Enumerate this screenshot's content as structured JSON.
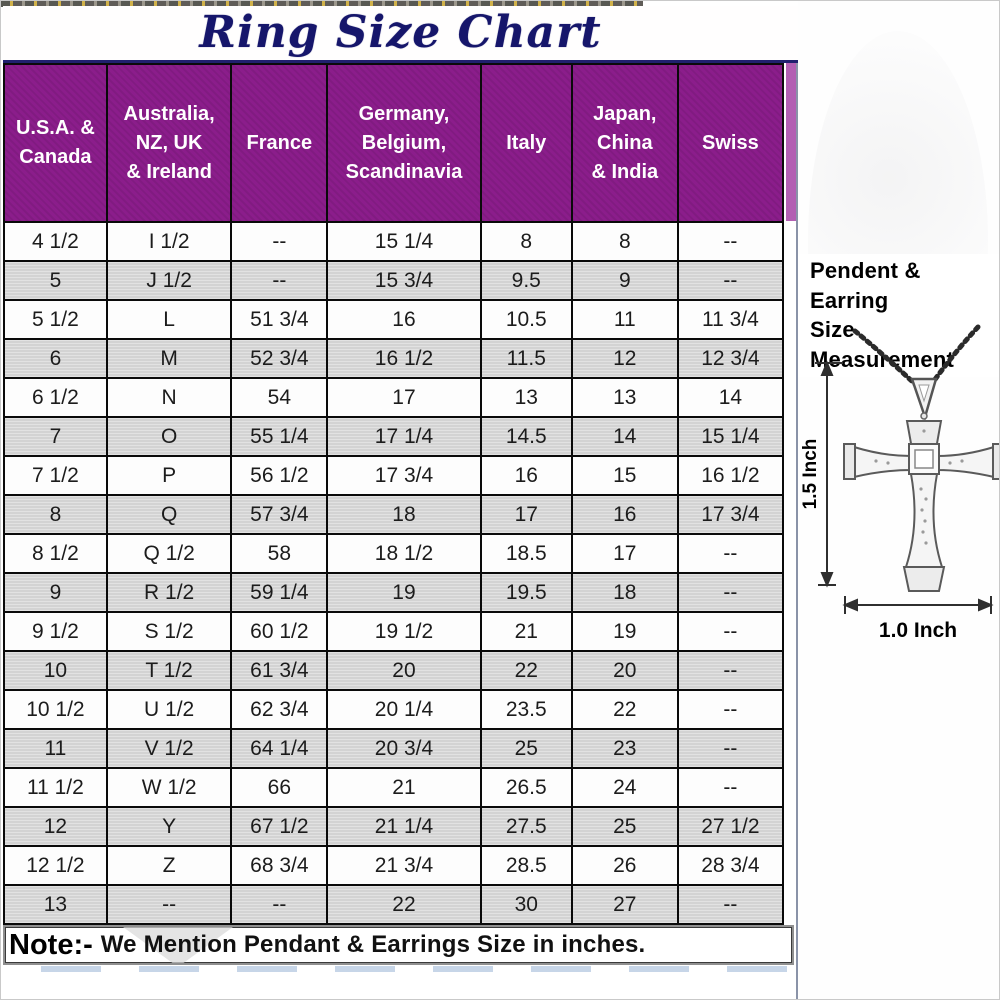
{
  "title": "Ring Size Chart",
  "chart_data": {
    "type": "table",
    "columns": [
      "U.S.A. &\nCanada",
      "Australia,\nNZ, UK\n& Ireland",
      "France",
      "Germany,\nBelgium,\nScandinavia",
      "Italy",
      "Japan,\nChina\n& India",
      "Swiss"
    ],
    "rows": [
      [
        "4 1/2",
        "I 1/2",
        "--",
        "15 1/4",
        "8",
        "8",
        "--"
      ],
      [
        "5",
        "J 1/2",
        "--",
        "15 3/4",
        "9.5",
        "9",
        "--"
      ],
      [
        "5 1/2",
        "L",
        "51 3/4",
        "16",
        "10.5",
        "11",
        "11 3/4"
      ],
      [
        "6",
        "M",
        "52 3/4",
        "16 1/2",
        "11.5",
        "12",
        "12 3/4"
      ],
      [
        "6 1/2",
        "N",
        "54",
        "17",
        "13",
        "13",
        "14"
      ],
      [
        "7",
        "O",
        "55 1/4",
        "17 1/4",
        "14.5",
        "14",
        "15 1/4"
      ],
      [
        "7 1/2",
        "P",
        "56 1/2",
        "17 3/4",
        "16",
        "15",
        "16 1/2"
      ],
      [
        "8",
        "Q",
        "57 3/4",
        "18",
        "17",
        "16",
        "17 3/4"
      ],
      [
        "8 1/2",
        "Q 1/2",
        "58",
        "18 1/2",
        "18.5",
        "17",
        "--"
      ],
      [
        "9",
        "R 1/2",
        "59 1/4",
        "19",
        "19.5",
        "18",
        "--"
      ],
      [
        "9 1/2",
        "S 1/2",
        "60 1/2",
        "19 1/2",
        "21",
        "19",
        "--"
      ],
      [
        "10",
        "T 1/2",
        "61 3/4",
        "20",
        "22",
        "20",
        "--"
      ],
      [
        "10 1/2",
        "U 1/2",
        "62 3/4",
        "20 1/4",
        "23.5",
        "22",
        "--"
      ],
      [
        "11",
        "V 1/2",
        "64 1/4",
        "20 3/4",
        "25",
        "23",
        "--"
      ],
      [
        "11 1/2",
        "W 1/2",
        "66",
        "21",
        "26.5",
        "24",
        "--"
      ],
      [
        "12",
        "Y",
        "67 1/2",
        "21 1/4",
        "27.5",
        "25",
        "27 1/2"
      ],
      [
        "12 1/2",
        "Z",
        "68 3/4",
        "21 3/4",
        "28.5",
        "26",
        "28 3/4"
      ],
      [
        "13",
        "--",
        "--",
        "22",
        "30",
        "27",
        "--"
      ]
    ]
  },
  "note": {
    "label": "Note:-",
    "text": "We Mention Pendant & Earrings Size in inches."
  },
  "pendant_panel": {
    "heading": "Pendent & Earring\nSize Measurement",
    "height_label": "1.5 Inch",
    "width_label": "1.0 Inch"
  },
  "colors": {
    "header_bg": "#8b1d8b",
    "header_gutter": "#b35fb3",
    "header_text": "#ffffff",
    "row_alt_bg": "#d3d3d3",
    "row_bg": "#fdfdfd",
    "title_color": "#16166b",
    "border": "#0a0a0a"
  }
}
